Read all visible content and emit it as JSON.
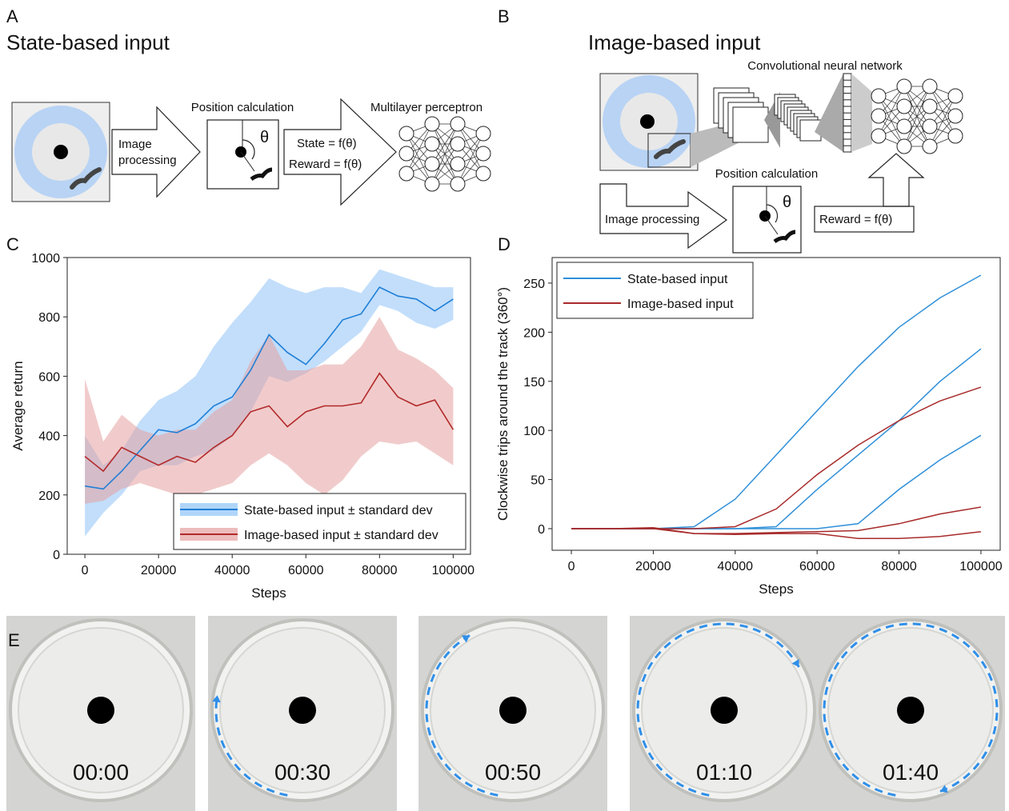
{
  "panels": {
    "a": {
      "letter": "A",
      "title": "State-based input",
      "arrow_text": [
        "Image",
        "processing"
      ],
      "box": "Position calculation",
      "theta": "θ",
      "state": "State  = f(θ)",
      "reward": "Reward  = f(θ)",
      "network": "Multilayer perceptron"
    },
    "b": {
      "letter": "B",
      "title": "Image-based input",
      "cnn": "Convolutional neural network",
      "box": "Position calculation",
      "theta": "θ",
      "arrow_text": "Image processing",
      "reward": "Reward  = f(θ)"
    },
    "c": {
      "letter": "C"
    },
    "d": {
      "letter": "D"
    },
    "e": {
      "letter": "E",
      "times": [
        "00:00",
        "00:30",
        "00:50",
        "01:10",
        "01:40"
      ]
    }
  },
  "chart_data": [
    {
      "type": "line",
      "xlabel": "Steps",
      "ylabel": "Average return",
      "x": [
        0,
        5000,
        10000,
        15000,
        20000,
        25000,
        30000,
        35000,
        40000,
        45000,
        50000,
        55000,
        60000,
        65000,
        70000,
        75000,
        80000,
        85000,
        90000,
        95000,
        100000
      ],
      "series": [
        {
          "name": "State-based input ± standard dev",
          "color": "#1f7fd6",
          "band_color": "#8fc3f7",
          "values": [
            230,
            220,
            280,
            350,
            420,
            410,
            440,
            500,
            530,
            620,
            740,
            680,
            640,
            710,
            790,
            810,
            900,
            870,
            860,
            820,
            860
          ],
          "lower": [
            60,
            140,
            200,
            280,
            300,
            300,
            330,
            350,
            400,
            480,
            600,
            580,
            610,
            650,
            700,
            750,
            840,
            820,
            780,
            760,
            790
          ],
          "upper": [
            400,
            300,
            350,
            450,
            520,
            550,
            600,
            700,
            780,
            850,
            930,
            900,
            880,
            900,
            900,
            880,
            960,
            940,
            920,
            900,
            900
          ]
        },
        {
          "name": "Image-based input ± standard dev",
          "color": "#b22a2a",
          "band_color": "#e5a0a0",
          "values": [
            330,
            280,
            360,
            330,
            300,
            330,
            310,
            360,
            400,
            480,
            500,
            430,
            480,
            500,
            500,
            510,
            610,
            530,
            500,
            520,
            420
          ],
          "lower": [
            170,
            180,
            220,
            240,
            220,
            200,
            200,
            220,
            240,
            300,
            340,
            300,
            240,
            200,
            250,
            330,
            380,
            370,
            380,
            340,
            300
          ],
          "upper": [
            590,
            380,
            470,
            420,
            400,
            420,
            420,
            480,
            520,
            650,
            740,
            620,
            620,
            640,
            640,
            700,
            800,
            690,
            660,
            620,
            560
          ]
        }
      ],
      "xlim": [
        -4800,
        104700
      ],
      "ylim": [
        0,
        1000
      ],
      "xticks": [
        0,
        20000,
        40000,
        60000,
        80000,
        100000
      ],
      "yticks": [
        0,
        200,
        400,
        600,
        800,
        1000
      ],
      "legend": "lower right"
    },
    {
      "type": "line",
      "xlabel": "Steps",
      "ylabel": "Clockwise trips around the track (360°)",
      "x": [
        0,
        10000,
        20000,
        30000,
        40000,
        50000,
        60000,
        70000,
        80000,
        90000,
        100000
      ],
      "series": [
        {
          "name": "State-based input",
          "color": "#2f8fd8",
          "runs": [
            [
              0,
              0,
              0,
              2,
              30,
              75,
              120,
              165,
              205,
              235,
              258
            ],
            [
              0,
              0,
              0,
              0,
              0,
              2,
              40,
              75,
              110,
              150,
              183
            ],
            [
              0,
              0,
              0,
              0,
              0,
              0,
              0,
              5,
              40,
              70,
              95
            ]
          ]
        },
        {
          "name": "Image-based input",
          "color": "#a82a2a",
          "runs": [
            [
              0,
              0,
              0,
              0,
              2,
              20,
              55,
              85,
              110,
              130,
              144
            ],
            [
              0,
              0,
              0,
              -5,
              -5,
              -4,
              -3,
              -2,
              5,
              15,
              22
            ],
            [
              0,
              0,
              1,
              -5,
              -6,
              -5,
              -5,
              -10,
              -10,
              -8,
              -3
            ]
          ]
        }
      ],
      "xlim": [
        -4700,
        104700
      ],
      "ylim": [
        -22,
        276
      ],
      "xticks": [
        0,
        20000,
        40000,
        60000,
        80000,
        100000
      ],
      "yticks": [
        0,
        50,
        100,
        150,
        200,
        250
      ],
      "legend": "upper left"
    }
  ]
}
